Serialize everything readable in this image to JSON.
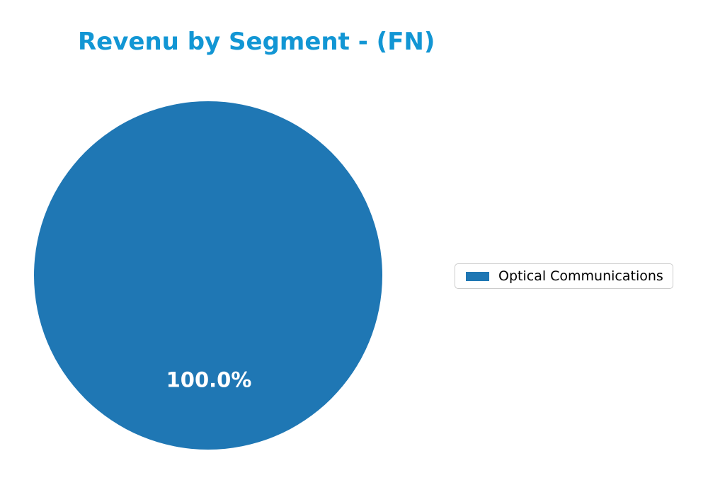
{
  "title": {
    "text": "Revenu by Segment - (FN)",
    "color": "#1296d4"
  },
  "chart_data": {
    "type": "pie",
    "title": "Revenu by Segment - (FN)",
    "labels": [
      "Optical Communications"
    ],
    "values": [
      100.0
    ],
    "value_labels": [
      "100.0%"
    ],
    "colors": [
      "#1f77b4"
    ],
    "startangle": 90,
    "pct_label_color": "#ffffff",
    "legend": {
      "position": "center right",
      "entries": [
        "Optical Communications"
      ]
    }
  },
  "legend": {
    "border_color": "#cccccc",
    "background": "#ffffff",
    "text_color": "#000000"
  }
}
